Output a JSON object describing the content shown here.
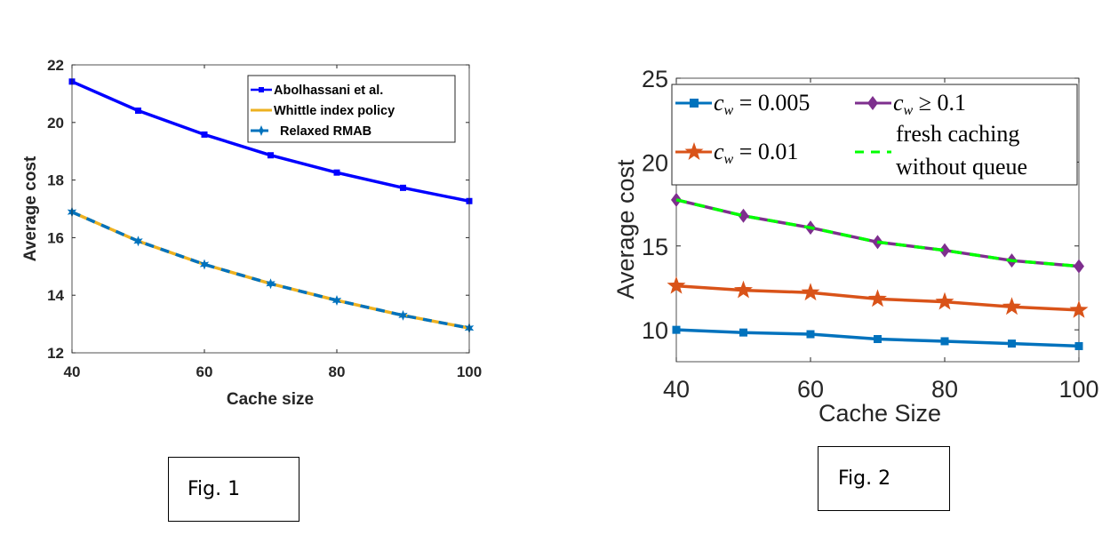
{
  "chart_data": [
    {
      "type": "line",
      "title": "",
      "xlabel": "Cache size",
      "ylabel": "Average cost",
      "xlim": [
        40,
        100
      ],
      "ylim": [
        12,
        22
      ],
      "xticks": [
        40,
        60,
        80,
        100
      ],
      "yticks": [
        12,
        14,
        16,
        18,
        20,
        22
      ],
      "grid": false,
      "legend_position": "top-right",
      "x": [
        40,
        50,
        60,
        70,
        80,
        90,
        100
      ],
      "series": [
        {
          "name": "Abolhassani et al.",
          "color": "#0000ff",
          "marker": "square",
          "linestyle": "solid",
          "values": [
            21.42,
            20.41,
            19.58,
            18.86,
            18.26,
            17.73,
            17.27
          ]
        },
        {
          "name": "Whittle index policy",
          "color": "#edb120",
          "marker": "none",
          "linestyle": "solid",
          "values": [
            16.89,
            15.88,
            15.07,
            14.4,
            13.82,
            13.3,
            12.86
          ]
        },
        {
          "name": "Relaxed RMAB",
          "color": "#0072bd",
          "marker": "star",
          "linestyle": "dashed",
          "values": [
            16.89,
            15.88,
            15.07,
            14.4,
            13.82,
            13.3,
            12.86
          ]
        }
      ],
      "caption": "Fig. 1"
    },
    {
      "type": "line",
      "title": "",
      "xlabel": "Cache Size",
      "ylabel": "Average cost",
      "xlim": [
        40,
        100
      ],
      "ylim": [
        8.1,
        25
      ],
      "xticks": [
        40,
        60,
        80,
        100
      ],
      "yticks": [
        10,
        15,
        20,
        25
      ],
      "grid": false,
      "legend_position": "top",
      "x": [
        40,
        50,
        60,
        70,
        80,
        90,
        100
      ],
      "series": [
        {
          "name": "c_w = 0.005",
          "legend_main": "c",
          "legend_sub": "w",
          "legend_rest": " = 0.005",
          "color": "#0072bd",
          "marker": "square",
          "linestyle": "solid",
          "values": [
            10.0,
            9.84,
            9.74,
            9.45,
            9.32,
            9.18,
            9.03
          ]
        },
        {
          "name": "c_w = 0.01",
          "legend_main": "c",
          "legend_sub": "w",
          "legend_rest": " = 0.01",
          "color": "#d95319",
          "marker": "star",
          "linestyle": "solid",
          "values": [
            12.62,
            12.36,
            12.22,
            11.84,
            11.67,
            11.37,
            11.18
          ]
        },
        {
          "name": "c_w ≥ 0.1",
          "legend_main": "c",
          "legend_sub": "w",
          "legend_rest": " ≥ 0.1",
          "color": "#7e2f8e",
          "marker": "diamond",
          "linestyle": "solid",
          "values": [
            17.75,
            16.8,
            16.09,
            15.23,
            14.74,
            14.13,
            13.79
          ]
        },
        {
          "name": "fresh caching without queue",
          "legend_line1": "fresh caching",
          "legend_line2": "without queue",
          "color": "#00ff00",
          "marker": "none",
          "linestyle": "dashed",
          "values": [
            17.75,
            16.8,
            16.09,
            15.23,
            14.74,
            14.13,
            13.79
          ]
        }
      ],
      "caption": "Fig. 2"
    }
  ]
}
